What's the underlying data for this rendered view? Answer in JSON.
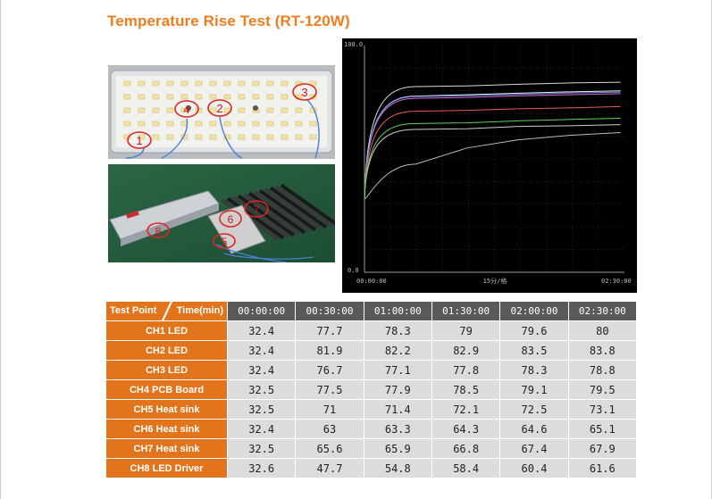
{
  "title": "Temperature Rise Test (RT-120W)",
  "photos": {
    "board_markers": [
      "1",
      "4",
      "2",
      "3"
    ],
    "assembly_markers": [
      "8",
      "6",
      "7",
      "5"
    ]
  },
  "chart_data": {
    "type": "line",
    "y_top_label": "100.0",
    "y_bottom_label": "0.0",
    "x_tick_labels": [
      "00:00:00",
      "02:30:00"
    ],
    "x_center_label": "15分/格",
    "ylim": [
      0,
      100
    ],
    "x": [
      "00:00:00",
      "00:30:00",
      "01:00:00",
      "01:30:00",
      "02:00:00",
      "02:30:00"
    ],
    "series": [
      {
        "color": "#e8e8e8",
        "values": [
          32.4,
          77.7,
          78.3,
          79,
          79.6,
          80
        ]
      },
      {
        "color": "#d9d9d9",
        "values": [
          32.4,
          81.9,
          82.2,
          82.9,
          83.5,
          83.8
        ]
      },
      {
        "color": "#d96bd9",
        "values": [
          32.4,
          76.7,
          77.1,
          77.8,
          78.3,
          78.8
        ]
      },
      {
        "color": "#6b8fe8",
        "values": [
          32.5,
          77.5,
          77.9,
          78.5,
          79.1,
          79.5
        ]
      },
      {
        "color": "#e85b5b",
        "values": [
          32.5,
          71,
          71.4,
          72.1,
          72.5,
          73.1
        ]
      },
      {
        "color": "#cccccc",
        "values": [
          32.4,
          63,
          63.3,
          64.3,
          64.6,
          65.1
        ]
      },
      {
        "color": "#5fd15f",
        "values": [
          32.5,
          65.6,
          65.9,
          66.8,
          67.4,
          67.9
        ]
      },
      {
        "color": "#bdbdbd",
        "values": [
          32.6,
          47.7,
          54.8,
          58.4,
          60.4,
          61.6
        ]
      }
    ]
  },
  "table": {
    "corner_left": "Test Point",
    "corner_right": "Time(min)",
    "times": [
      "00:00:00",
      "00:30:00",
      "01:00:00",
      "01:30:00",
      "02:00:00",
      "02:30:00"
    ],
    "rows": [
      {
        "label": "CH1 LED",
        "values": [
          "32.4",
          "77.7",
          "78.3",
          "79",
          "79.6",
          "80"
        ]
      },
      {
        "label": "CH2 LED",
        "values": [
          "32.4",
          "81.9",
          "82.2",
          "82.9",
          "83.5",
          "83.8"
        ]
      },
      {
        "label": "CH3 LED",
        "values": [
          "32.4",
          "76.7",
          "77.1",
          "77.8",
          "78.3",
          "78.8"
        ]
      },
      {
        "label": "CH4 PCB Board",
        "values": [
          "32.5",
          "77.5",
          "77.9",
          "78.5",
          "79.1",
          "79.5"
        ]
      },
      {
        "label": "CH5 Heat sink",
        "values": [
          "32.5",
          "71",
          "71.4",
          "72.1",
          "72.5",
          "73.1"
        ]
      },
      {
        "label": "CH6 Heat sink",
        "values": [
          "32.4",
          "63",
          "63.3",
          "64.3",
          "64.6",
          "65.1"
        ]
      },
      {
        "label": "CH7 Heat sink",
        "values": [
          "32.5",
          "65.6",
          "65.9",
          "66.8",
          "67.4",
          "67.9"
        ]
      },
      {
        "label": "CH8 LED Driver",
        "values": [
          "32.6",
          "47.7",
          "54.8",
          "58.4",
          "60.4",
          "61.6"
        ]
      }
    ]
  }
}
